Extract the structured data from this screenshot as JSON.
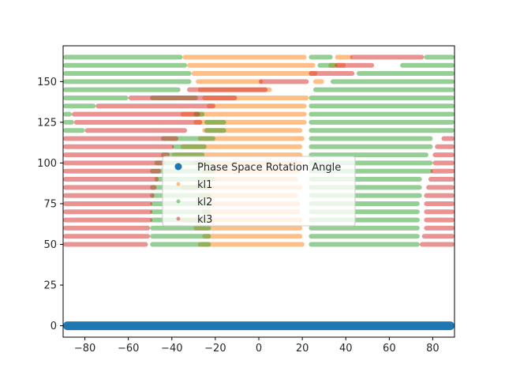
{
  "chart_data": {
    "type": "scatter",
    "title": "",
    "xlabel": "",
    "ylabel": "",
    "xlim": [
      -90,
      90
    ],
    "ylim": [
      -7,
      172
    ],
    "xticks": [
      -80,
      -60,
      -40,
      -20,
      0,
      20,
      40,
      60,
      80
    ],
    "xtick_labels": [
      "−80",
      "−60",
      "−40",
      "−20",
      "0",
      "20",
      "40",
      "60",
      "80"
    ],
    "yticks": [
      0,
      25,
      50,
      75,
      100,
      125,
      150
    ],
    "ytick_labels": [
      "0",
      "25",
      "50",
      "75",
      "100",
      "125",
      "150"
    ],
    "grid": false,
    "legend_position": "center",
    "series": [
      {
        "name": "Phase Space Rotation Angle",
        "color": "#1f77b4",
        "marker_size": "large",
        "alpha": 1.0,
        "rows": [
          {
            "y": 0,
            "segments": [
              [
                -90,
                90
              ]
            ]
          }
        ]
      },
      {
        "name": "kl1",
        "color": "#ff7f0e",
        "marker_size": "small",
        "alpha": 0.5,
        "rows": [
          {
            "y": 165,
            "segments": [
              [
                -35,
                22
              ],
              [
                35,
                43
              ]
            ]
          },
          {
            "y": 160,
            "segments": [
              [
                -33,
                26
              ],
              [
                32,
                40
              ]
            ]
          },
          {
            "y": 155,
            "segments": [
              [
                -31,
                27
              ]
            ]
          },
          {
            "y": 150,
            "segments": [
              [
                -29,
                2
              ],
              [
                25,
                30
              ]
            ]
          },
          {
            "y": 145,
            "segments": [
              [
                -28,
                6
              ]
            ]
          },
          {
            "y": 140,
            "segments": [
              [
                -26,
                23
              ]
            ]
          },
          {
            "y": 135,
            "segments": [
              [
                -24,
                22
              ]
            ]
          },
          {
            "y": 130,
            "segments": [
              [
                -36,
                22
              ]
            ]
          },
          {
            "y": 125,
            "segments": [
              [
                -30,
                22
              ]
            ]
          },
          {
            "y": 120,
            "segments": [
              [
                -26,
                20
              ]
            ]
          },
          {
            "y": 115,
            "segments": [
              [
                -28,
                21
              ]
            ]
          },
          {
            "y": 110,
            "segments": [
              [
                -36,
                20
              ]
            ]
          },
          {
            "y": 105,
            "segments": [
              [
                -40,
                20
              ]
            ]
          },
          {
            "y": 100,
            "segments": [
              [
                -30,
                20
              ]
            ]
          },
          {
            "y": 95,
            "segments": [
              [
                -26,
                19
              ]
            ]
          },
          {
            "y": 90,
            "segments": [
              [
                -28,
                18
              ]
            ]
          },
          {
            "y": 85,
            "segments": [
              [
                -36,
                20
              ]
            ]
          },
          {
            "y": 80,
            "segments": [
              [
                -28,
                18
              ]
            ]
          },
          {
            "y": 75,
            "segments": [
              [
                -23,
                19
              ]
            ]
          },
          {
            "y": 70,
            "segments": [
              [
                -26,
                19
              ]
            ]
          },
          {
            "y": 65,
            "segments": [
              [
                -36,
                20
              ]
            ]
          },
          {
            "y": 60,
            "segments": [
              [
                -30,
                20
              ]
            ]
          },
          {
            "y": 55,
            "segments": [
              [
                -26,
                20
              ]
            ]
          },
          {
            "y": 50,
            "segments": [
              [
                -28,
                21
              ]
            ]
          }
        ]
      },
      {
        "name": "kl2",
        "color": "#2ca02c",
        "marker_size": "small",
        "alpha": 0.5,
        "rows": [
          {
            "y": 165,
            "segments": [
              [
                -90,
                -35
              ],
              [
                23,
                34
              ],
              [
                76,
                90
              ]
            ]
          },
          {
            "y": 160,
            "segments": [
              [
                -90,
                -33
              ],
              [
                27,
                36
              ],
              [
                65,
                90
              ]
            ]
          },
          {
            "y": 155,
            "segments": [
              [
                -90,
                -31
              ],
              [
                45,
                90
              ]
            ]
          },
          {
            "y": 150,
            "segments": [
              [
                -90,
                -31
              ],
              [
                33,
                90
              ]
            ]
          },
          {
            "y": 145,
            "segments": [
              [
                -90,
                -36
              ],
              [
                25,
                90
              ]
            ]
          },
          {
            "y": 140,
            "segments": [
              [
                -90,
                -60
              ],
              [
                -50,
                -28
              ],
              [
                23,
                90
              ]
            ]
          },
          {
            "y": 135,
            "segments": [
              [
                -90,
                -75
              ],
              [
                23,
                90
              ]
            ]
          },
          {
            "y": 130,
            "segments": [
              [
                -90,
                -86
              ],
              [
                -30,
                -25
              ],
              [
                23,
                90
              ]
            ]
          },
          {
            "y": 125,
            "segments": [
              [
                -90,
                -85
              ],
              [
                -25,
                -15
              ],
              [
                23,
                90
              ]
            ]
          },
          {
            "y": 120,
            "segments": [
              [
                -90,
                -80
              ],
              [
                -25,
                -15
              ],
              [
                23,
                90
              ]
            ]
          },
          {
            "y": 115,
            "segments": [
              [
                -45,
                -20
              ],
              [
                23,
                80
              ]
            ]
          },
          {
            "y": 110,
            "segments": [
              [
                -40,
                -24
              ],
              [
                23,
                80
              ]
            ]
          },
          {
            "y": 105,
            "segments": [
              [
                -45,
                -25
              ],
              [
                23,
                78
              ]
            ]
          },
          {
            "y": 100,
            "segments": [
              [
                -48,
                -22
              ],
              [
                23,
                80
              ]
            ]
          },
          {
            "y": 95,
            "segments": [
              [
                -50,
                -20
              ],
              [
                23,
                80
              ]
            ]
          },
          {
            "y": 90,
            "segments": [
              [
                -48,
                -20
              ],
              [
                23,
                75
              ]
            ]
          },
          {
            "y": 85,
            "segments": [
              [
                -50,
                -22
              ],
              [
                23,
                75
              ]
            ]
          },
          {
            "y": 80,
            "segments": [
              [
                -50,
                -22
              ],
              [
                23,
                75
              ]
            ]
          },
          {
            "y": 75,
            "segments": [
              [
                -50,
                -22
              ],
              [
                23,
                74
              ]
            ]
          },
          {
            "y": 70,
            "segments": [
              [
                -50,
                -22
              ],
              [
                23,
                74
              ]
            ]
          },
          {
            "y": 65,
            "segments": [
              [
                -50,
                -22
              ],
              [
                23,
                74
              ]
            ]
          },
          {
            "y": 60,
            "segments": [
              [
                -50,
                -22
              ],
              [
                23,
                74
              ]
            ]
          },
          {
            "y": 55,
            "segments": [
              [
                -50,
                -22
              ],
              [
                23,
                74
              ]
            ]
          },
          {
            "y": 50,
            "segments": [
              [
                -50,
                -22
              ],
              [
                23,
                74
              ]
            ]
          }
        ]
      },
      {
        "name": "kl3",
        "color": "#d62728",
        "marker_size": "small",
        "alpha": 0.5,
        "rows": [
          {
            "y": 165,
            "segments": [
              [
                42,
                76
              ]
            ]
          },
          {
            "y": 160,
            "segments": [
              [
                35,
                53
              ]
            ]
          },
          {
            "y": 155,
            "segments": [
              [
                23,
                44
              ]
            ]
          },
          {
            "y": 150,
            "segments": [
              [
                0,
                23
              ]
            ]
          },
          {
            "y": 145,
            "segments": [
              [
                -33,
                4
              ]
            ]
          },
          {
            "y": 140,
            "segments": [
              [
                -60,
                -10
              ]
            ]
          },
          {
            "y": 135,
            "segments": [
              [
                -75,
                -20
              ]
            ]
          },
          {
            "y": 130,
            "segments": [
              [
                -86,
                -27
              ]
            ]
          },
          {
            "y": 125,
            "segments": [
              [
                -85,
                -26
              ]
            ]
          },
          {
            "y": 120,
            "segments": [
              [
                -80,
                -33
              ]
            ]
          },
          {
            "y": 115,
            "segments": [
              [
                -90,
                -37
              ],
              [
                84,
                90
              ]
            ]
          },
          {
            "y": 110,
            "segments": [
              [
                -90,
                -39
              ],
              [
                81,
                90
              ]
            ]
          },
          {
            "y": 105,
            "segments": [
              [
                -90,
                -41
              ],
              [
                80,
                90
              ]
            ]
          },
          {
            "y": 100,
            "segments": [
              [
                -90,
                -43
              ],
              [
                80,
                90
              ]
            ]
          },
          {
            "y": 95,
            "segments": [
              [
                -90,
                -45
              ],
              [
                79,
                90
              ]
            ]
          },
          {
            "y": 90,
            "segments": [
              [
                -90,
                -46
              ],
              [
                78,
                90
              ]
            ]
          },
          {
            "y": 85,
            "segments": [
              [
                -90,
                -47
              ],
              [
                77,
                90
              ]
            ]
          },
          {
            "y": 80,
            "segments": [
              [
                -90,
                -48
              ],
              [
                76,
                90
              ]
            ]
          },
          {
            "y": 75,
            "segments": [
              [
                -90,
                -49
              ],
              [
                76,
                90
              ]
            ]
          },
          {
            "y": 70,
            "segments": [
              [
                -90,
                -49
              ],
              [
                76,
                90
              ]
            ]
          },
          {
            "y": 65,
            "segments": [
              [
                -90,
                -49
              ],
              [
                76,
                90
              ]
            ]
          },
          {
            "y": 60,
            "segments": [
              [
                -90,
                -50
              ],
              [
                76,
                90
              ]
            ]
          },
          {
            "y": 55,
            "segments": [
              [
                -90,
                -50
              ],
              [
                75,
                90
              ]
            ]
          },
          {
            "y": 50,
            "segments": [
              [
                -90,
                -51
              ],
              [
                74,
                90
              ]
            ]
          }
        ]
      }
    ]
  }
}
